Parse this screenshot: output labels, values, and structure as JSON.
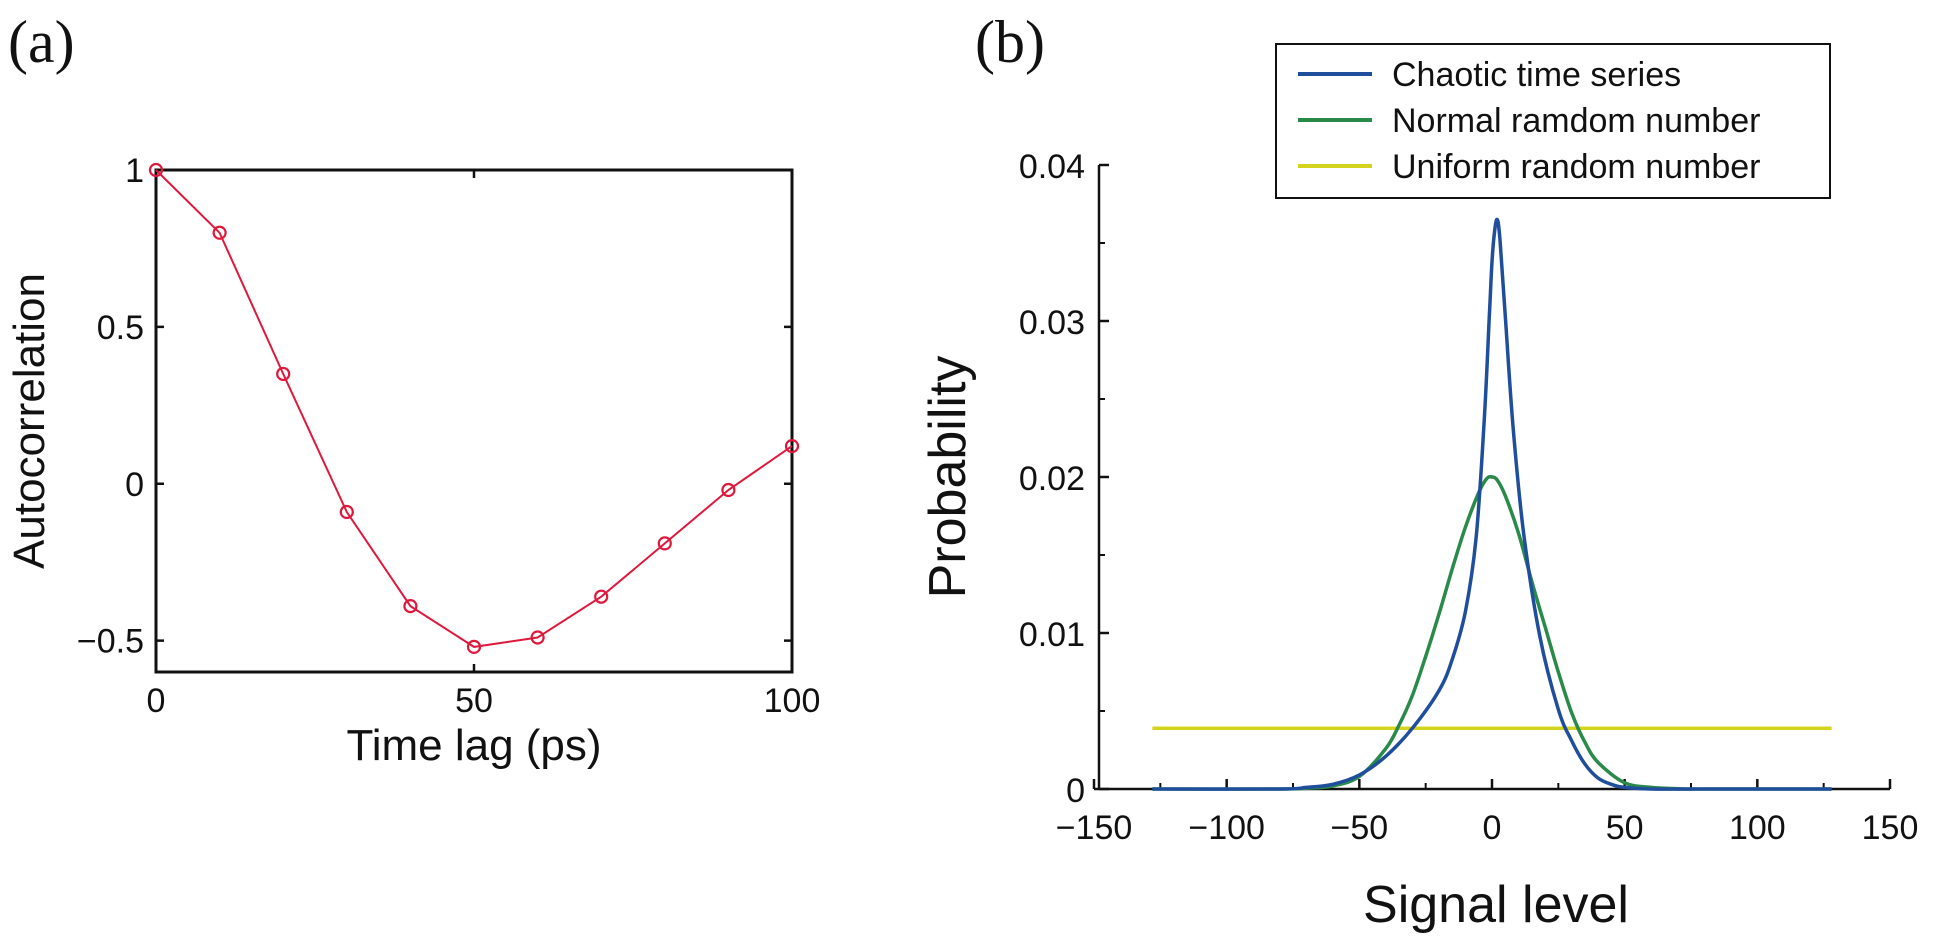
{
  "chart_data": [
    {
      "panel": "(a)",
      "type": "line",
      "title": "",
      "xlabel": "Time lag (ps)",
      "ylabel": "Autocorrelation",
      "xlim": [
        0,
        100
      ],
      "ylim": [
        -0.6,
        1
      ],
      "xticks": [
        0,
        50,
        100
      ],
      "xtick_labels": [
        "0",
        "50",
        "100"
      ],
      "yticks": [
        1,
        0.5,
        0,
        -0.5
      ],
      "ytick_labels": [
        "1",
        "0.5",
        "0",
        "−0.5"
      ],
      "series": [
        {
          "name": "Autocorrelation",
          "color": "#e0183c",
          "marker": "circle",
          "x": [
            0,
            10,
            20,
            30,
            40,
            50,
            60,
            70,
            80,
            90,
            100
          ],
          "values": [
            1.0,
            0.8,
            0.35,
            -0.09,
            -0.39,
            -0.52,
            -0.49,
            -0.36,
            -0.19,
            -0.02,
            0.12
          ]
        }
      ]
    },
    {
      "panel": "(b)",
      "type": "line",
      "title": "",
      "xlabel": "Signal level",
      "ylabel": "Probability",
      "xlim": [
        -150,
        150
      ],
      "ylim": [
        0,
        0.04
      ],
      "xticks": [
        -150,
        -100,
        -50,
        0,
        50,
        100,
        150
      ],
      "xtick_labels": [
        "−150",
        "−100",
        "−50",
        "0",
        "50",
        "100",
        "150"
      ],
      "yticks": [
        0,
        0.01,
        0.02,
        0.03,
        0.04
      ],
      "ytick_labels": [
        "0",
        "0.01",
        "0.02",
        "0.03",
        "0.04"
      ],
      "legend_position": "top-right",
      "series": [
        {
          "name": "Chaotic time series",
          "color": "#1f4e9c",
          "x": [
            -128,
            -80,
            -70,
            -60,
            -50,
            -40,
            -30,
            -20,
            -15,
            -10,
            -6,
            -3,
            -1,
            0,
            1,
            2,
            3,
            5,
            8,
            12,
            18,
            25,
            30,
            35,
            40,
            45,
            50,
            60,
            80,
            128
          ],
          "values": [
            0,
            0,
            0.0001,
            0.0003,
            0.0009,
            0.0021,
            0.0039,
            0.0063,
            0.0083,
            0.0114,
            0.0161,
            0.0234,
            0.0303,
            0.0338,
            0.0358,
            0.0365,
            0.0352,
            0.0303,
            0.0231,
            0.0163,
            0.0098,
            0.0051,
            0.0031,
            0.0016,
            0.0007,
            0.0003,
            0.0001,
            0,
            0,
            0
          ]
        },
        {
          "name": "Normal ramdom number",
          "color": "#2a8a4a",
          "x": [
            -128,
            -80,
            -70,
            -60,
            -50,
            -40,
            -35,
            -30,
            -25,
            -20,
            -15,
            -10,
            -5,
            -2,
            0,
            2,
            5,
            10,
            15,
            20,
            25,
            30,
            35,
            40,
            50,
            60,
            70,
            80,
            128
          ],
          "values": [
            0,
            0,
            5e-05,
            0.0002,
            0.0008,
            0.0026,
            0.0041,
            0.006,
            0.0085,
            0.0112,
            0.0141,
            0.0168,
            0.019,
            0.0199,
            0.02,
            0.0198,
            0.0188,
            0.0164,
            0.0133,
            0.0104,
            0.0075,
            0.0049,
            0.003,
            0.0017,
            0.0004,
            0.0001,
            2e-05,
            0,
            0
          ]
        },
        {
          "name": "Uniform random number",
          "color": "#d4d41e",
          "x": [
            -128,
            128
          ],
          "values": [
            0.0039,
            0.0039
          ]
        }
      ]
    }
  ]
}
